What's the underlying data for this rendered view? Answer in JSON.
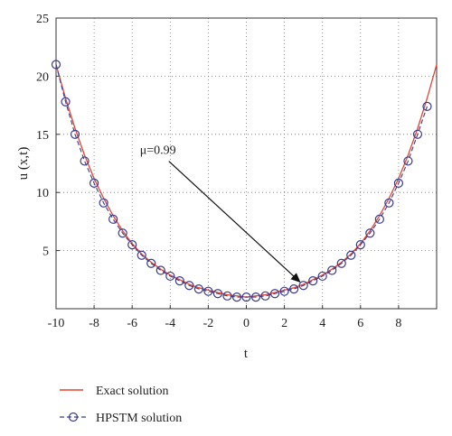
{
  "chart_data": {
    "type": "line",
    "xlabel": "t",
    "ylabel": "u (x,t)",
    "xlim": [
      -10,
      10
    ],
    "ylim": [
      0,
      25
    ],
    "xticks": [
      -10,
      -8,
      -6,
      -4,
      -2,
      0,
      2,
      4,
      6,
      8
    ],
    "yticks": [
      5,
      10,
      15,
      20,
      25
    ],
    "grid": true,
    "legend_position": "bottom-left, below plot",
    "annotation": {
      "text": "μ=0.99",
      "points_to": {
        "x": 3,
        "y": 2.0
      },
      "text_at": {
        "x": -5.5,
        "y": 13.0
      }
    },
    "series": [
      {
        "name": "Exact solution",
        "style": "line",
        "color": "#e8432f",
        "formula_note": "",
        "x": [
          -10,
          -9.5,
          -9,
          -8.5,
          -8,
          -7.5,
          -7,
          -6.5,
          -6,
          -5.5,
          -5,
          -4.5,
          -4,
          -3.5,
          -3,
          -2.5,
          -2,
          -1.5,
          -1,
          -0.5,
          0,
          0.5,
          1,
          1.5,
          2,
          2.5,
          3,
          3.5,
          4,
          4.5,
          5,
          5.5,
          6,
          6.5,
          7,
          7.5,
          8,
          8.5,
          9,
          9.5,
          10
        ],
        "values": [
          21.0,
          18.1,
          15.5,
          13.2,
          11.2,
          9.5,
          8.0,
          6.7,
          5.6,
          4.7,
          4.0,
          3.4,
          2.9,
          2.5,
          2.1,
          1.8,
          1.6,
          1.4,
          1.2,
          1.1,
          1.0,
          1.1,
          1.2,
          1.4,
          1.6,
          1.8,
          2.1,
          2.5,
          2.9,
          3.4,
          4.0,
          4.7,
          5.6,
          6.7,
          8.0,
          9.5,
          11.2,
          13.2,
          15.5,
          18.1,
          21.0
        ]
      },
      {
        "name": "HPSTM solution",
        "style": "dashed-circle",
        "color": "#3a3a8c",
        "x": [
          -10,
          -9.5,
          -9,
          -8.5,
          -8,
          -7.5,
          -7,
          -6.5,
          -6,
          -5.5,
          -5,
          -4.5,
          -4,
          -3.5,
          -3,
          -2.5,
          -2,
          -1.5,
          -1,
          -0.5,
          0,
          0.5,
          1,
          1.5,
          2,
          2.5,
          3,
          3.5,
          4,
          4.5,
          5,
          5.5,
          6,
          6.5,
          7,
          7.5,
          8,
          8.5,
          9
        ],
        "values": [
          21.0,
          17.8,
          15.0,
          12.7,
          10.8,
          9.1,
          7.7,
          6.5,
          5.5,
          4.6,
          3.9,
          3.3,
          2.8,
          2.4,
          2.0,
          1.7,
          1.5,
          1.3,
          1.1,
          1.0,
          1.0,
          1.0,
          1.1,
          1.3,
          1.5,
          1.7,
          2.0,
          2.4,
          2.8,
          3.3,
          3.9,
          4.6,
          5.5,
          6.5,
          7.7,
          9.1,
          10.8,
          12.7,
          15.0
        ],
        "extra_points": {
          "x": [
            9.5
          ],
          "values": [
            17.4
          ]
        }
      }
    ]
  }
}
